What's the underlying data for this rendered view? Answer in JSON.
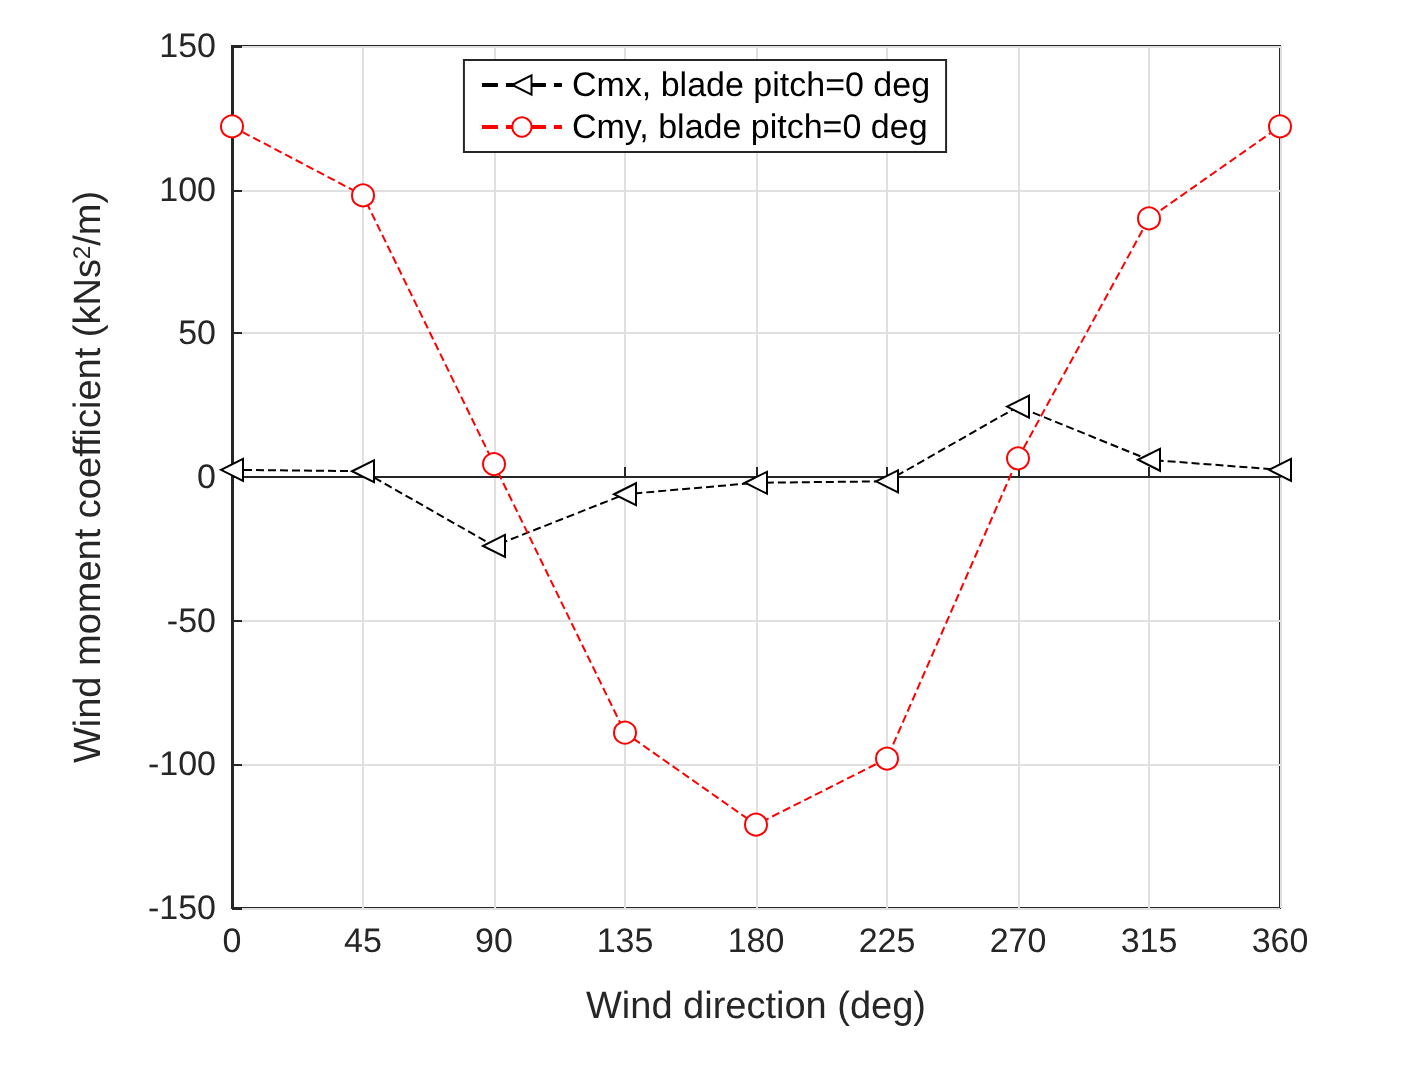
{
  "chart_data": {
    "type": "line",
    "xlabel": "Wind direction (deg)",
    "ylabel": "Wind moment coefficient (kNs$^{2}$/m)",
    "x": [
      0,
      45,
      90,
      135,
      180,
      225,
      270,
      315,
      360
    ],
    "xlim": [
      0,
      360
    ],
    "xticks": [
      0,
      45,
      90,
      135,
      180,
      225,
      270,
      315,
      360
    ],
    "ylim": [
      -150,
      150
    ],
    "yticks": [
      -150,
      -100,
      -50,
      0,
      50,
      100,
      150
    ],
    "series": [
      {
        "name": "Cmx, blade pitch=0 deg",
        "color": "#000000",
        "marker": "triangle",
        "values": [
          2.5,
          2,
          -24,
          -6,
          -2,
          -1.5,
          24.5,
          6,
          2.5
        ]
      },
      {
        "name": "Cmy, blade pitch=0 deg",
        "color": "#ff0000",
        "marker": "circle",
        "values": [
          122,
          98,
          4.5,
          -89,
          -121,
          -98,
          6.5,
          90,
          122
        ]
      }
    ],
    "grid": true,
    "legend": "top",
    "line_style": "dashed"
  }
}
